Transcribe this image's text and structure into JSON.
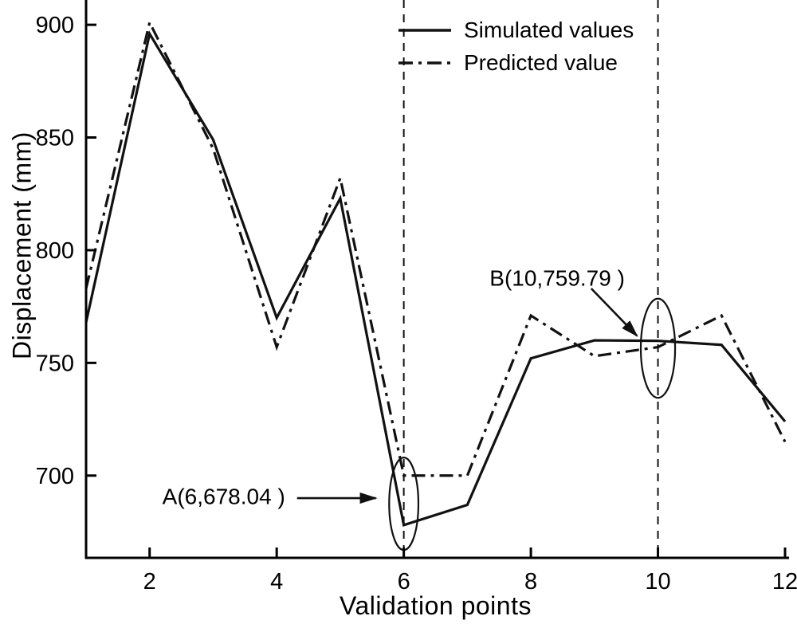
{
  "chart_data": {
    "type": "line",
    "title": "",
    "xlabel": "Validation points",
    "ylabel": "Displacement (mm)",
    "x": [
      1,
      2,
      3,
      4,
      5,
      6,
      7,
      8,
      9,
      10,
      11,
      12
    ],
    "xlim": [
      1,
      12
    ],
    "ylim": [
      663.5,
      911
    ],
    "x_ticks": [
      2,
      4,
      6,
      8,
      10,
      12
    ],
    "y_ticks": [
      700,
      750,
      800,
      850,
      900
    ],
    "grid": false,
    "legend_position": "top-right",
    "series": [
      {
        "name": "Simulated values",
        "style": "solid",
        "values": [
          768,
          896,
          849,
          770,
          823,
          678.04,
          687,
          752,
          760,
          759.79,
          758,
          724
        ]
      },
      {
        "name": "Predicted value",
        "style": "dash-dot",
        "values": [
          783,
          901,
          845,
          757,
          832,
          700,
          700,
          771,
          753,
          757,
          771,
          715
        ]
      }
    ],
    "reference_lines_x": [
      6,
      10
    ],
    "ellipses": [
      {
        "id": "a",
        "x": 6,
        "y": 687.5,
        "rx": 0.23,
        "ry": 20.5
      },
      {
        "id": "b",
        "x": 10,
        "y": 756.5,
        "rx": 0.27,
        "ry": 22
      }
    ],
    "annotations": [
      {
        "id": "a",
        "label": "A(6,678.04 )",
        "point": [
          6,
          678.04
        ],
        "text_x": 2.2,
        "text_y": 690,
        "arrow": [
          [
            4.32,
            690
          ],
          [
            5.56,
            690
          ]
        ]
      },
      {
        "id": "b",
        "label": "B(10,759.79 )",
        "point": [
          10,
          759.79
        ],
        "text_x": 7.35,
        "text_y": 787,
        "arrow": [
          [
            8.95,
            783
          ],
          [
            9.67,
            762
          ]
        ]
      }
    ],
    "colors": {
      "line": "#111111",
      "background": "#ffffff"
    }
  }
}
